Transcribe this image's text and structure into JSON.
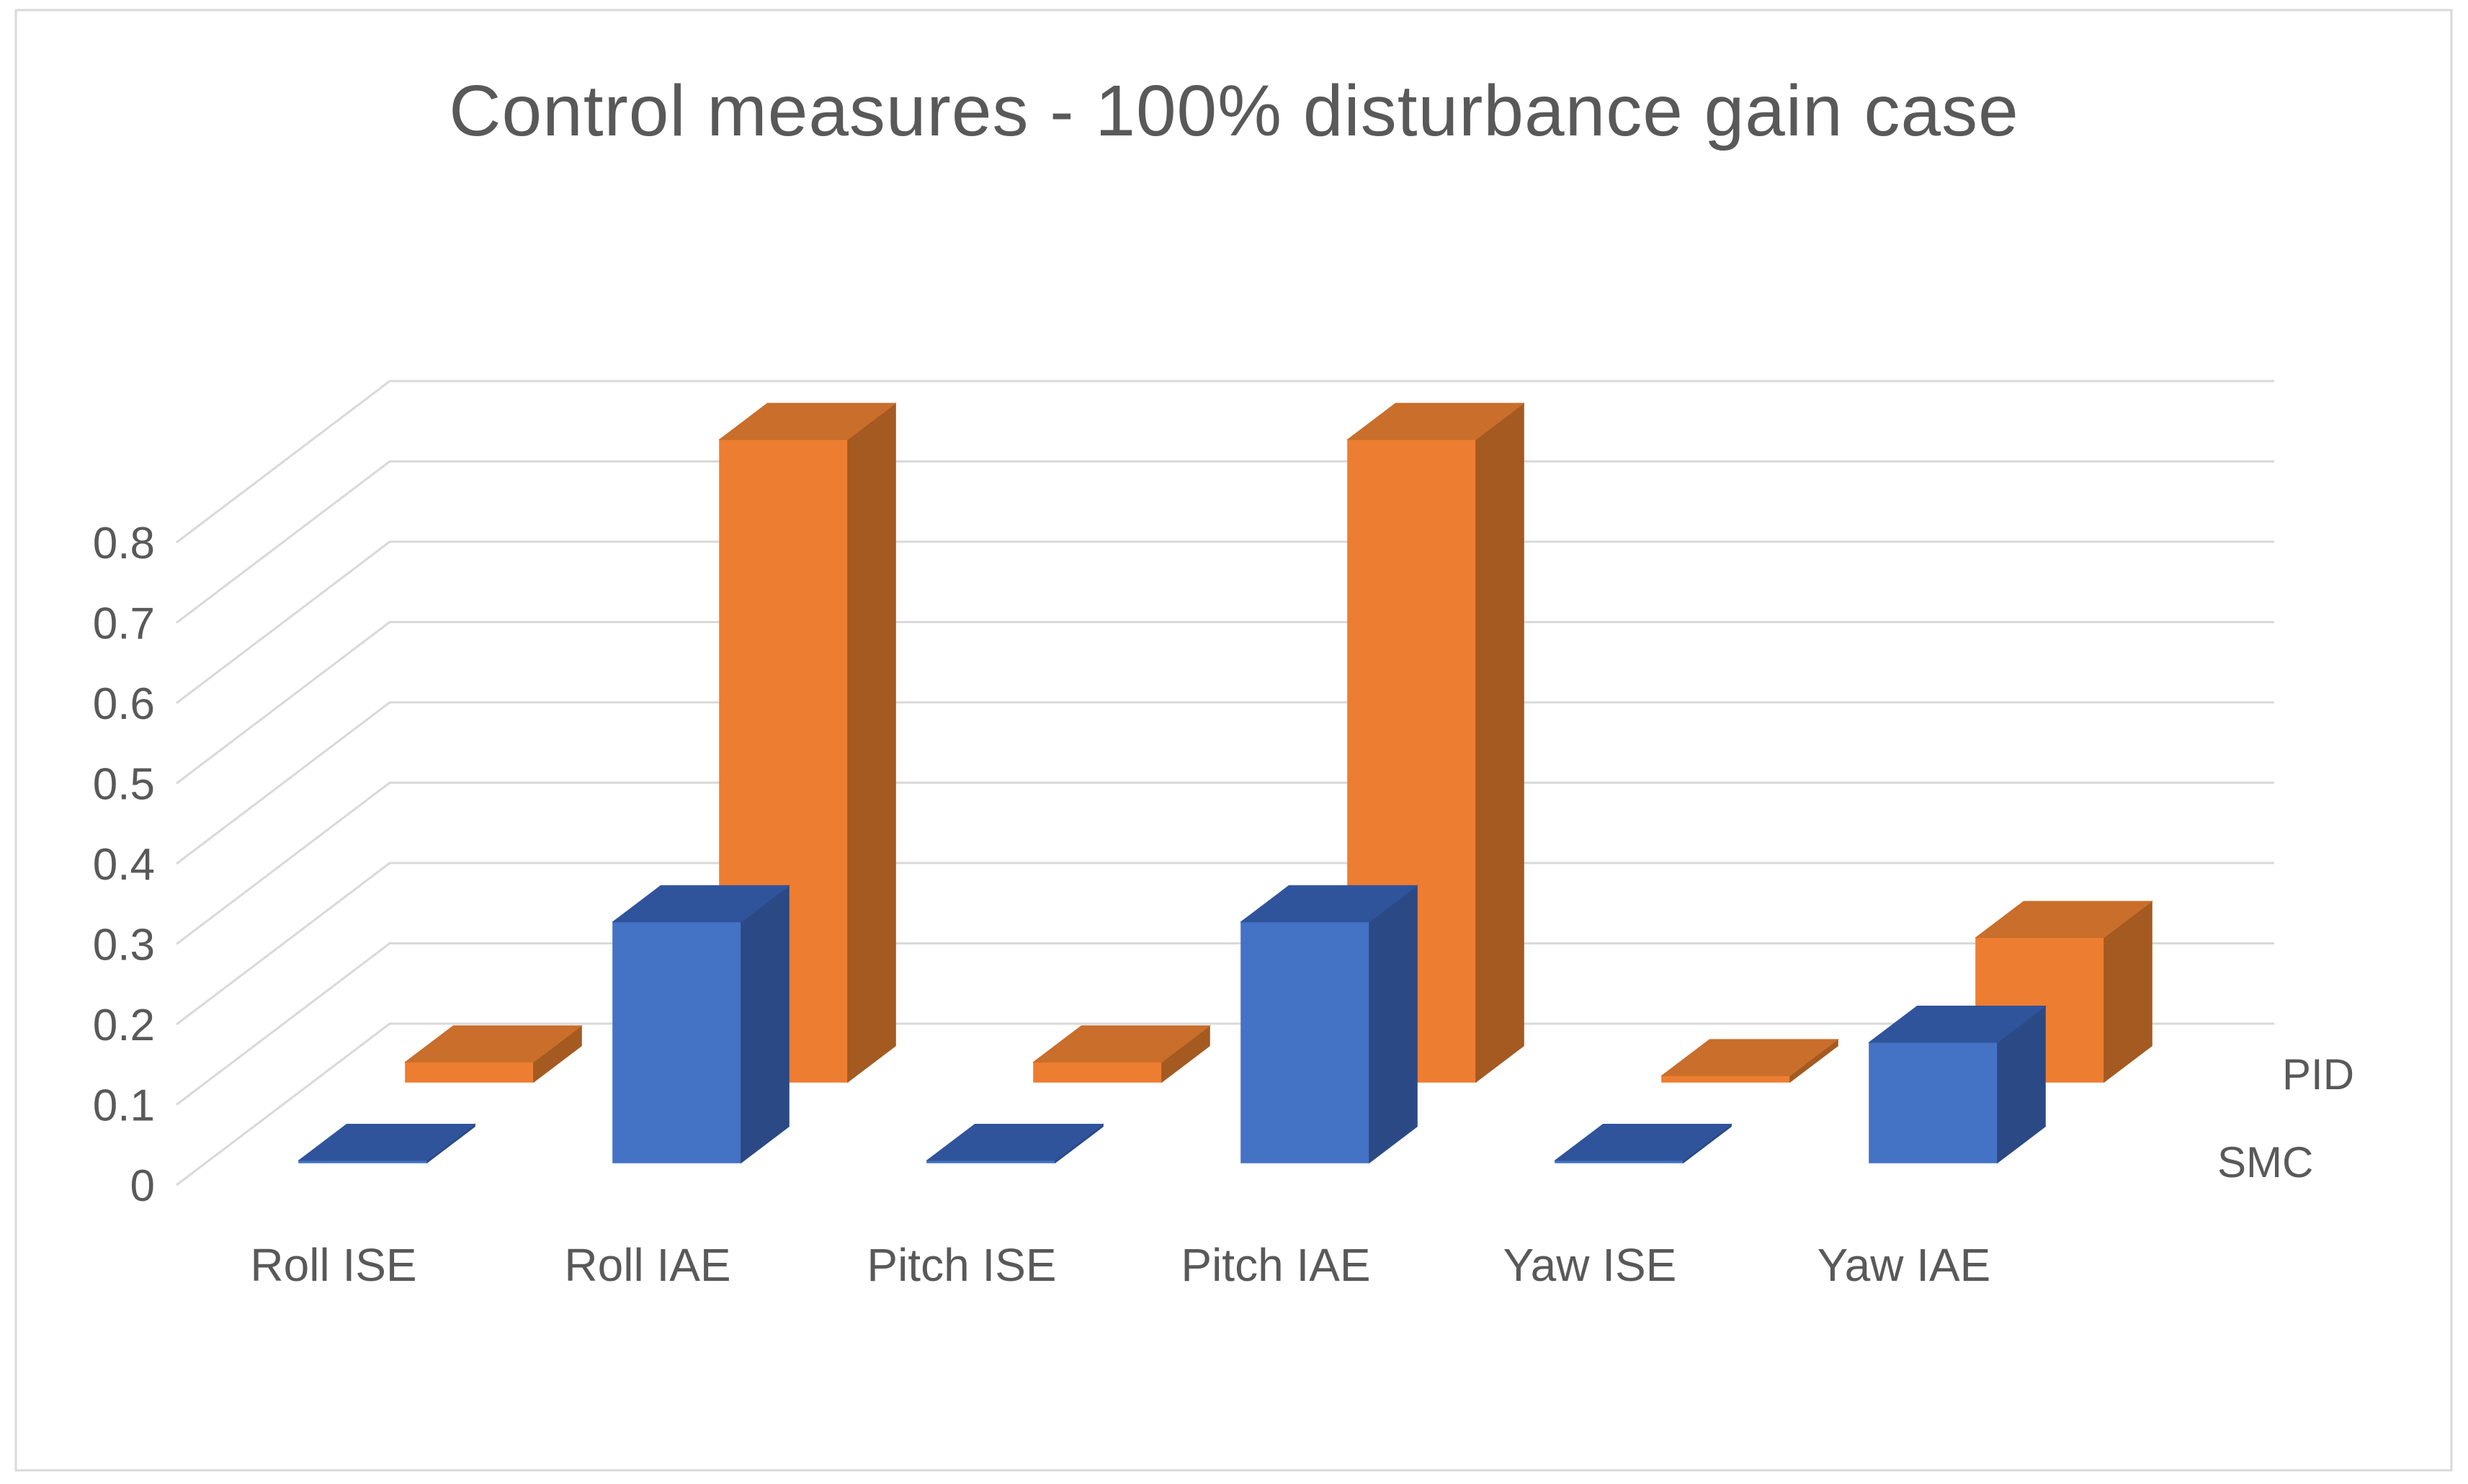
{
  "page": {
    "background_color": "#FFFFFF",
    "border_color": "#D9D9D9"
  },
  "chart_data": {
    "type": "bar",
    "subtype": "3d-clustered-column",
    "title": "Control measures - 100% disturbance gain case",
    "title_color": "#595959",
    "categories": [
      "Roll ISE",
      "Roll IAE",
      "Pitch ISE",
      "Pitch IAE",
      "Yaw ISE",
      "Yaw IAE"
    ],
    "series": [
      {
        "name": "PID",
        "row": "back",
        "values": [
          0.025,
          0.8,
          0.025,
          0.8,
          0.008,
          0.18
        ],
        "color_front": "#ED7D31",
        "color_top": "#C96E2B",
        "color_side": "#A45A21"
      },
      {
        "name": "SMC",
        "row": "front",
        "values": [
          0.003,
          0.3,
          0.003,
          0.3,
          0.003,
          0.15
        ],
        "color_front": "#4472C4",
        "color_top": "#30549B",
        "color_side": "#2B4A85"
      }
    ],
    "value_axis": {
      "min": 0,
      "max": 0.8,
      "tick_step": 0.1,
      "tick_labels": [
        "0",
        "0.1",
        "0.2",
        "0.3",
        "0.4",
        "0.5",
        "0.6",
        "0.7",
        "0.8"
      ]
    },
    "series_axis_labels": [
      "PID",
      "SMC"
    ],
    "series_axis_position": "right",
    "grid": true,
    "grid_color": "#D9D9D9",
    "label_color": "#595959",
    "xlabel": "",
    "ylabel": "",
    "legend_position": "none"
  }
}
